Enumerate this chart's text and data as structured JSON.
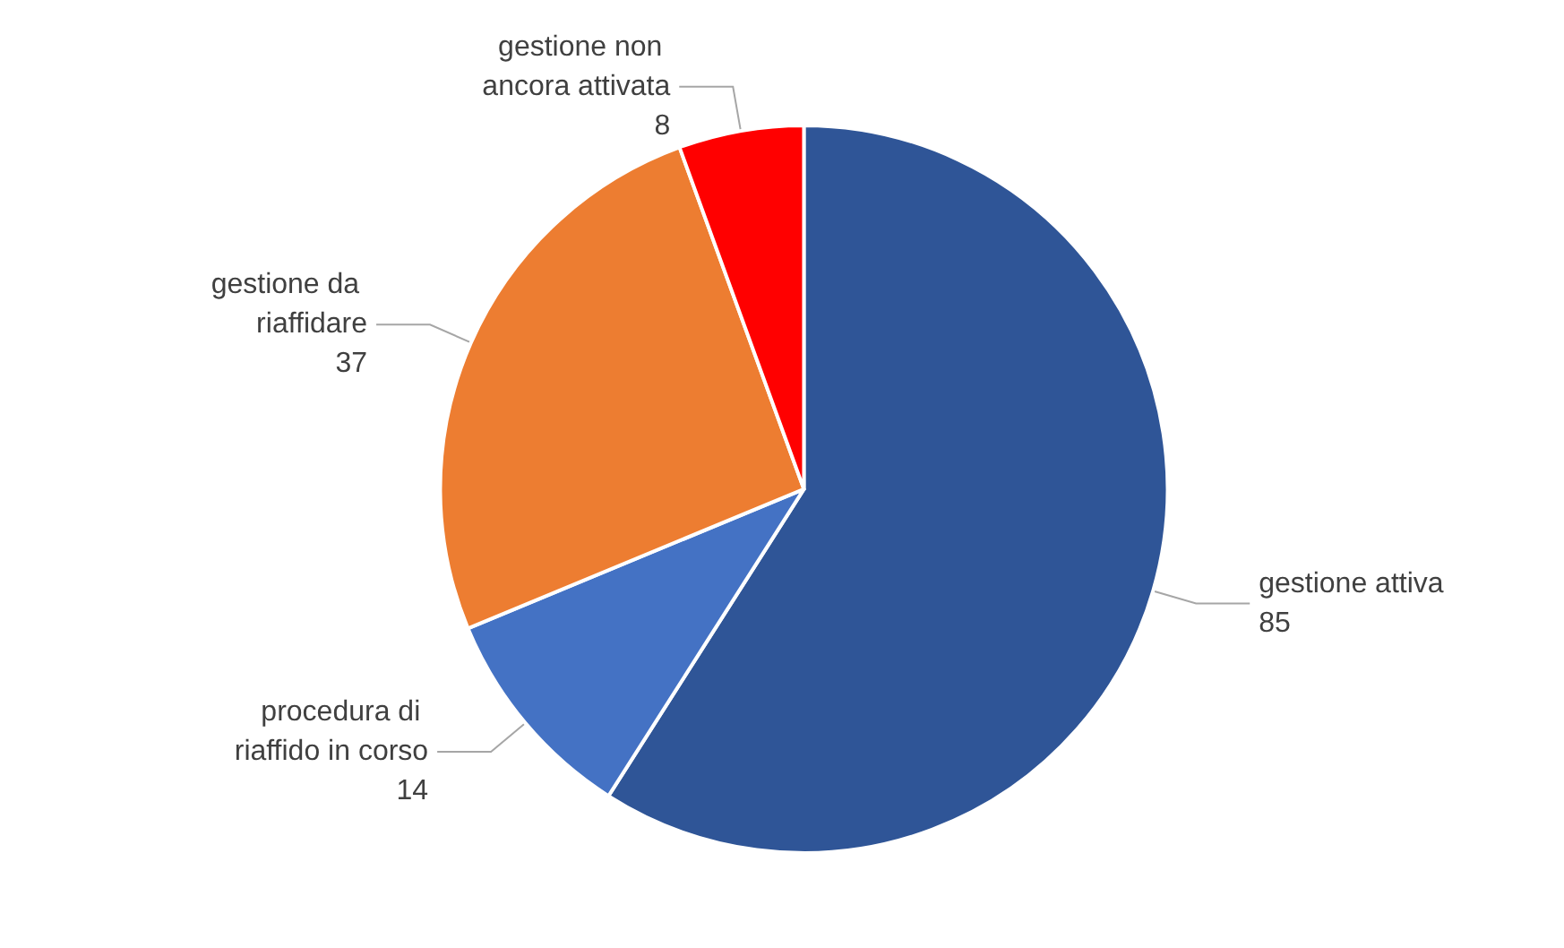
{
  "chart_data": {
    "type": "pie",
    "categories": [
      "gestione attiva",
      "procedura di riaffido in corso",
      "gestione da riaffidare",
      "gestione non ancora attivata"
    ],
    "values": [
      85,
      14,
      37,
      8
    ],
    "colors": [
      "#2f5597",
      "#4472c4",
      "#ed7d31",
      "#ff0000"
    ],
    "data_labels": true,
    "legend": false
  }
}
